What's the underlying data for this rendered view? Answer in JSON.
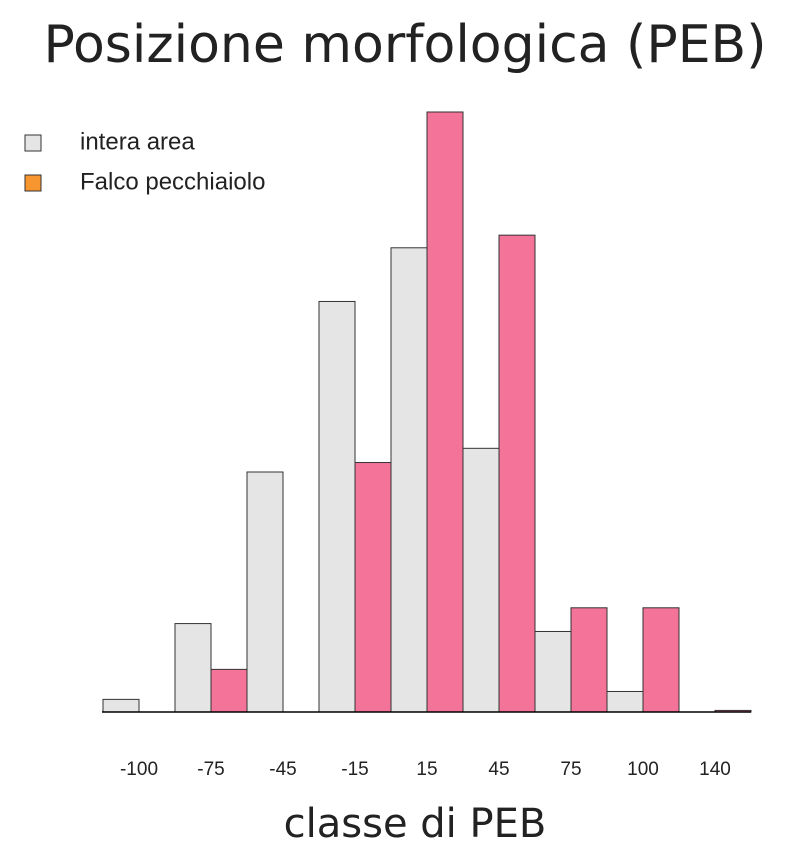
{
  "chart_data": {
    "type": "bar",
    "title": "Posizione morfologica (PEB)",
    "x_label": "classe di PEB",
    "categories": [
      "-100",
      "-75",
      "-45",
      "-15",
      "15",
      "45",
      "75",
      "100",
      "140"
    ],
    "series": [
      {
        "name": "intera area",
        "color": "#e5e5e5",
        "legend_color": "#e5e5e5",
        "values": [
          0.8,
          5.6,
          15.2,
          26.0,
          29.4,
          16.7,
          5.1,
          1.3,
          0
        ]
      },
      {
        "name": "Falco pecchiaiolo",
        "color": "#f37399",
        "legend_color": "#f7962e",
        "values": [
          0,
          2.7,
          0,
          15.8,
          38.0,
          30.2,
          6.6,
          6.6,
          0.1
        ]
      }
    ],
    "legend": "top-left"
  }
}
